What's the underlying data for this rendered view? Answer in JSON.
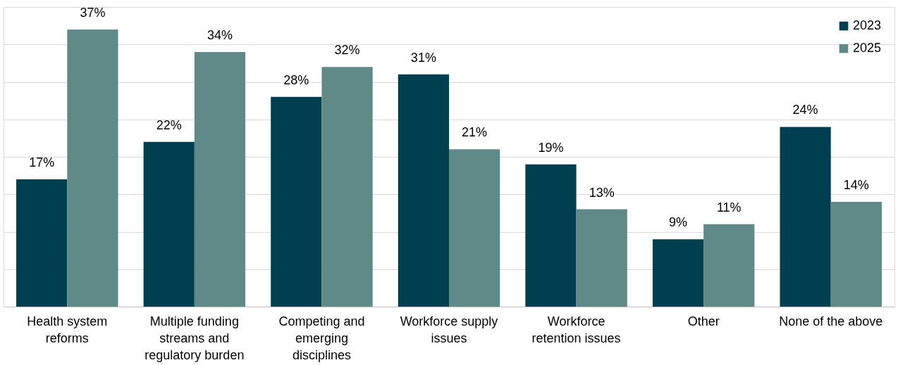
{
  "chart_data": {
    "type": "bar",
    "categories": [
      "Health system reforms",
      "Multiple funding streams and regulatory burden",
      "Competing and emerging disciplines",
      "Workforce supply issues",
      "Workforce retention issues",
      "Other",
      "None of the above"
    ],
    "series": [
      {
        "name": "2023",
        "color": "#003f4f",
        "values": [
          17,
          22,
          28,
          31,
          19,
          9,
          24
        ],
        "value_labels": [
          "17%",
          "22%",
          "28%",
          "31%",
          "19%",
          "9%",
          "24%"
        ]
      },
      {
        "name": "2025",
        "color": "#5f8a87",
        "values": [
          37,
          34,
          32,
          21,
          13,
          11,
          14
        ],
        "value_labels": [
          "37%",
          "34%",
          "32%",
          "21%",
          "13%",
          "11%",
          "14%"
        ]
      }
    ],
    "ylim": [
      0,
      40
    ],
    "yticks": [
      {
        "value": 0,
        "label": null
      },
      {
        "value": 5,
        "label": null
      },
      {
        "value": 10,
        "label": null
      },
      {
        "value": 15,
        "label": null
      },
      {
        "value": 20,
        "label": null
      },
      {
        "value": 25,
        "label": null
      },
      {
        "value": 30,
        "label": null
      },
      {
        "value": 35,
        "label": null
      },
      {
        "value": 40,
        "label": null
      }
    ],
    "grid": "y",
    "legend": "top right",
    "tick_labels": "x"
  }
}
